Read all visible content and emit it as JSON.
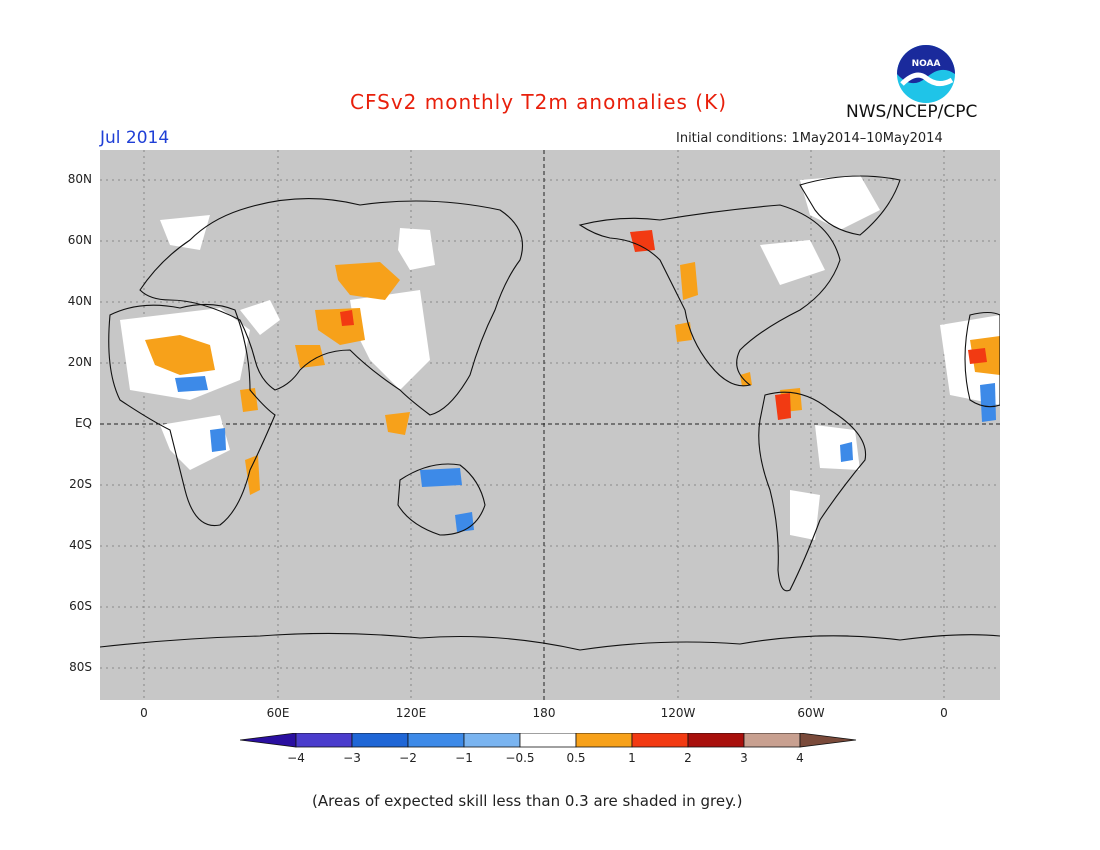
{
  "title": "CFSv2 monthly T2m anomalies (K)",
  "month": "Jul 2014",
  "org": "NWS/NCEP/CPC",
  "init_conditions": "Initial conditions:  1May2014–10May2014",
  "footer": "(Areas of expected skill less than 0.3 are shaded in grey.)",
  "logo_text": "NOAA",
  "lat_labels": [
    "80N",
    "60N",
    "40N",
    "20N",
    "EQ",
    "20S",
    "40S",
    "60S",
    "80S"
  ],
  "lon_labels": [
    "0",
    "60E",
    "120E",
    "180",
    "120W",
    "60W",
    "0"
  ],
  "colorbar": {
    "labels": [
      "−4",
      "−3",
      "−2",
      "−1",
      "−0.5",
      "0.5",
      "1",
      "2",
      "3",
      "4"
    ],
    "colors": [
      "#2a0fa0",
      "#4a3ccc",
      "#1f66d6",
      "#3d8ae8",
      "#7ab4f0",
      "#ffffff",
      "#f7a11a",
      "#f23a12",
      "#a8100c",
      "#c8a090",
      "#7a4a3a"
    ]
  },
  "colors": {
    "ocean_grey": "#c7c7c7",
    "warm_orange": "#f7a11a",
    "warm_red": "#f23a12",
    "cool_blue": "#3d8ae8",
    "neutral_white": "#ffffff"
  }
}
